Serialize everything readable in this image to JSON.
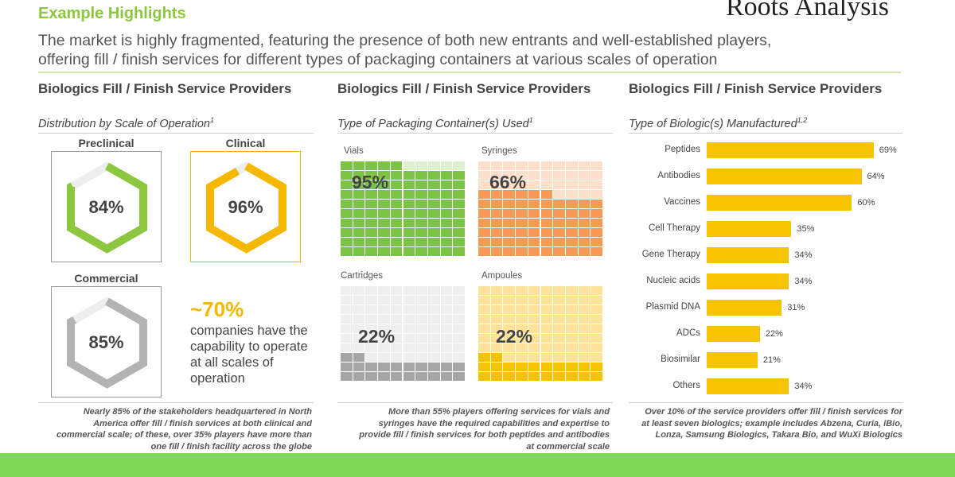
{
  "header": {
    "title": "Example Highlights",
    "logo": "Roots Analysis",
    "subtitle_lines": [
      "The market is highly fragmented, featuring the presence of both new entrants and well-established players,",
      "offering fill / finish services for different types of packaging containers at various scales of operation"
    ]
  },
  "columns": [
    {
      "title": "Biologics Fill / Finish Service Providers",
      "subtitle": "Distribution by Scale of Operation",
      "sup": "1",
      "note": "Nearly 85% of the stakeholders headquartered in North America offer fill / finish services at both clinical and commercial scale; of these, over 35% players have more than one fill / finish facility across the globe"
    },
    {
      "title": "Biologics Fill / Finish Service Providers",
      "subtitle": "Type of Packaging Container(s) Used",
      "sup": "1",
      "note": "More than 55% players offering services for vials and syringes have the required capabilities and expertise to provide fill / finish services for both peptides and antibodies at commercial scale"
    },
    {
      "title": "Biologics Fill / Finish Service Providers",
      "subtitle": "Type of Biologic(s) Manufactured",
      "sup": "1,2",
      "note": "Over 10% of the service providers offer fill / finish services for at least seven biologics; example includes Abzena, Curia, iBio, Lonza, Samsung Biologics, Takara Bio, and WuXi Biologics"
    }
  ],
  "scale_highlight": {
    "value": "~70%",
    "text": "companies have the capability to operate at all scales of operation"
  },
  "chart_data": [
    {
      "type": "gauge",
      "categories": [
        "Preclinical",
        "Clinical",
        "Commercial"
      ],
      "values": [
        84,
        96,
        85
      ],
      "labels": [
        "84%",
        "96%",
        "85%"
      ],
      "colors": [
        "#8dc63f",
        "#f5b800",
        "#b3b3b3"
      ]
    },
    {
      "type": "waffle",
      "categories": [
        "Vials",
        "Syringes",
        "Cartridges",
        "Ampoules"
      ],
      "values": [
        95,
        66,
        22,
        22
      ],
      "labels": [
        "95%",
        "66%",
        "22%",
        "22%"
      ],
      "colors": [
        {
          "on": "#7cc444",
          "off": "#dff0d0"
        },
        {
          "on": "#f79a55",
          "off": "#fde0cc"
        },
        {
          "on": "#a6a6a6",
          "off": "#efefef"
        },
        {
          "on": "#f7c200",
          "off": "#fde29a"
        }
      ]
    },
    {
      "type": "bar",
      "orientation": "horizontal",
      "categories": [
        "Peptides",
        "Antibodies",
        "Vaccines",
        "Cell Therapy",
        "Gene Therapy",
        "Nucleic acids",
        "Plasmid DNA",
        "ADCs",
        "Biosimilar",
        "Others"
      ],
      "values": [
        69,
        64,
        60,
        35,
        34,
        34,
        31,
        22,
        21,
        34
      ],
      "labels": [
        "69%",
        "64%",
        "60%",
        "35%",
        "34%",
        "34%",
        "31%",
        "22%",
        "21%",
        "34%"
      ],
      "color": "#f7c200"
    }
  ]
}
